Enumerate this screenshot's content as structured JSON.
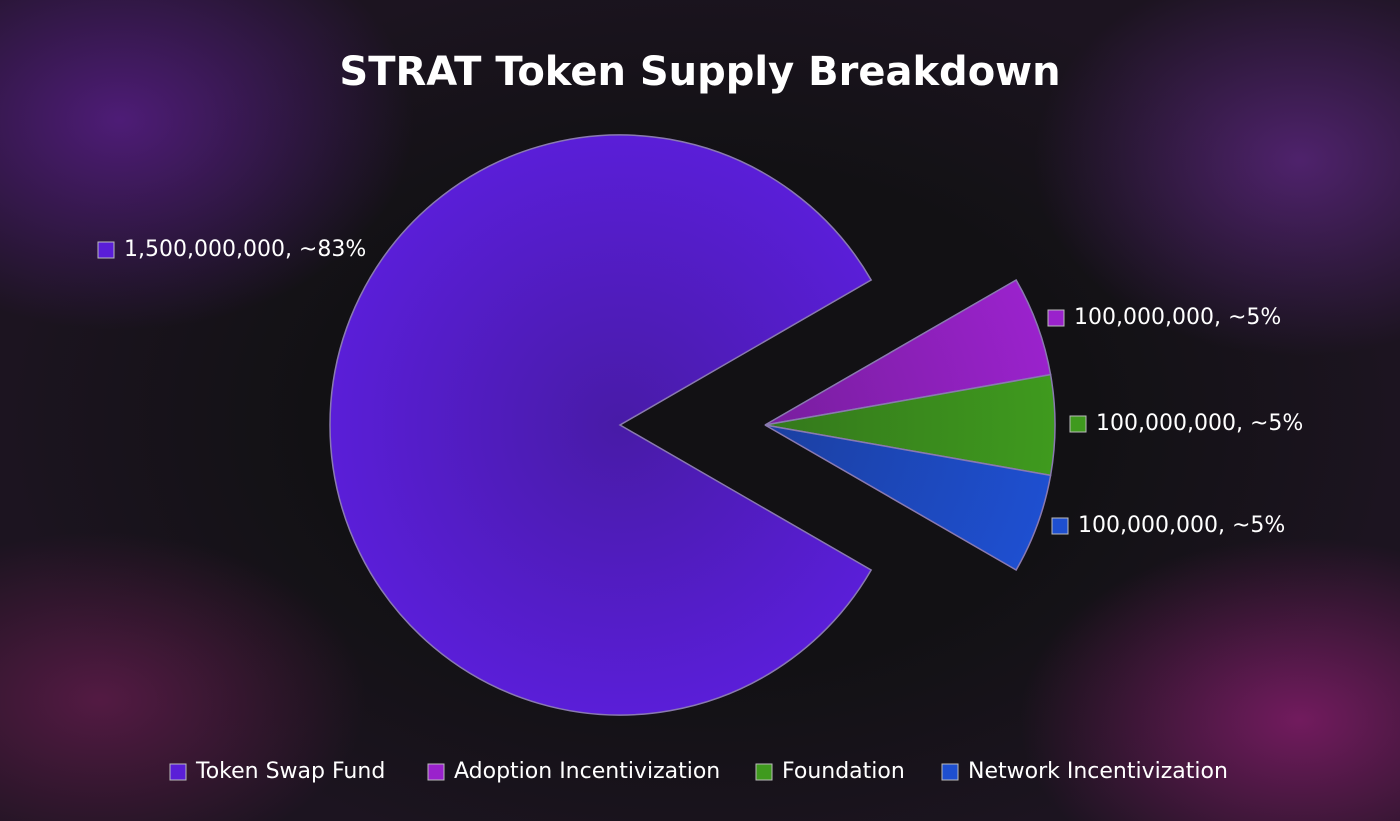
{
  "chart_data": {
    "type": "pie",
    "title": "STRAT Token Supply Breakdown",
    "categories": [
      "Token Swap Fund",
      "Adoption Incentivization",
      "Foundation",
      "Network Incentivization"
    ],
    "values": [
      1500000000,
      100000000,
      100000000,
      100000000
    ],
    "value_labels": [
      "1,500,000,000, ~83%",
      "100,000,000, ~5%",
      "100,000,000, ~5%",
      "100,000,000, ~5%"
    ],
    "colors": [
      "#5a1ed8",
      "#9a22cc",
      "#3f9a1e",
      "#1e4fd0"
    ],
    "legend": "bottom"
  }
}
